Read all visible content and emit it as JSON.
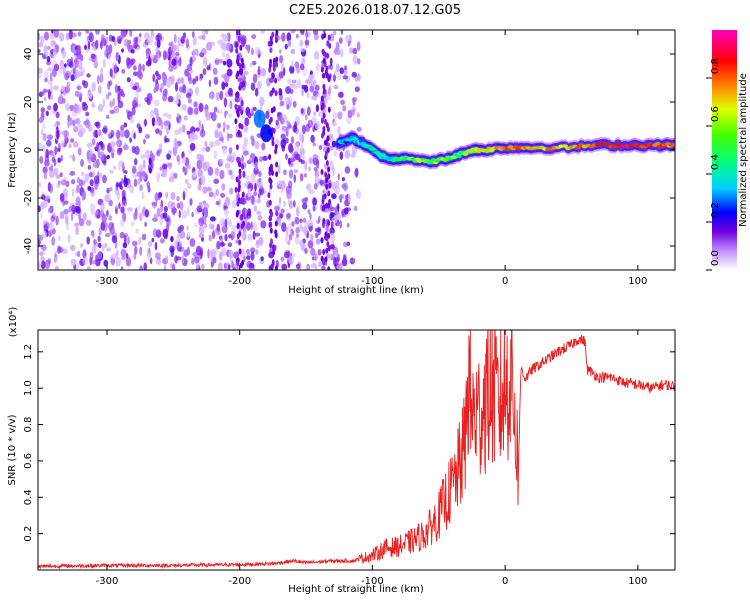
{
  "title": "C2E5.2026.018.07.12.G05",
  "chart_data": [
    {
      "type": "heatmap",
      "xlabel": "Height of straight line (km)",
      "ylabel": "Frequency (Hz)",
      "xlim": [
        -352,
        128
      ],
      "ylim": [
        -50,
        50
      ],
      "xticks": [
        -300,
        -200,
        -100,
        0,
        100
      ],
      "yticks": [
        -40,
        -20,
        0,
        20,
        40
      ],
      "colorbar": {
        "label": "Normalized spectral amplitude",
        "ticks": [
          0.0,
          0.2,
          0.4,
          0.6,
          0.8
        ],
        "range": [
          0,
          1
        ],
        "colors": [
          "#ffffff",
          "#b070ff",
          "#7000e0",
          "#0000ff",
          "#00e5ff",
          "#00ff40",
          "#e0ff00",
          "#ff8000",
          "#ff0000",
          "#ff0080",
          "#ff00c0"
        ]
      },
      "noise_region_x": [
        -352,
        -118
      ],
      "noise_gap_x": [
        -182,
        -172
      ],
      "features": [
        {
          "x": -185,
          "y": 13,
          "amplitude": 0.35
        },
        {
          "x": -180,
          "y": 7,
          "amplitude": 0.3
        }
      ],
      "signal_track": [
        {
          "x": -125,
          "y": 3,
          "amplitude": 0.35
        },
        {
          "x": -115,
          "y": 5,
          "amplitude": 0.35
        },
        {
          "x": -105,
          "y": 2,
          "amplitude": 0.4
        },
        {
          "x": -95,
          "y": -2,
          "amplitude": 0.45
        },
        {
          "x": -85,
          "y": -4,
          "amplitude": 0.45
        },
        {
          "x": -75,
          "y": -3,
          "amplitude": 0.5
        },
        {
          "x": -60,
          "y": -5,
          "amplitude": 0.55
        },
        {
          "x": -45,
          "y": -4,
          "amplitude": 0.55
        },
        {
          "x": -35,
          "y": -2,
          "amplitude": 0.5
        },
        {
          "x": -25,
          "y": 0,
          "amplitude": 0.6
        },
        {
          "x": -15,
          "y": 0,
          "amplitude": 0.6
        },
        {
          "x": 0,
          "y": 1,
          "amplitude": 0.75
        },
        {
          "x": 20,
          "y": 1,
          "amplitude": 0.7
        },
        {
          "x": 45,
          "y": 1,
          "amplitude": 0.65
        },
        {
          "x": 70,
          "y": 2,
          "amplitude": 0.75
        },
        {
          "x": 95,
          "y": 2,
          "amplitude": 0.85
        },
        {
          "x": 115,
          "y": 2,
          "amplitude": 0.75
        },
        {
          "x": 128,
          "y": 2,
          "amplitude": 0.7
        }
      ]
    },
    {
      "type": "line",
      "xlabel": "Height of straight line (km)",
      "ylabel": "SNR (10 * v/v)",
      "multiplier": "(x10⁴)",
      "xlim": [
        -352,
        128
      ],
      "ylim": [
        0,
        1.32
      ],
      "xticks": [
        -300,
        -200,
        -100,
        0,
        100
      ],
      "yticks": [
        0.2,
        0.4,
        0.6,
        0.8,
        1.0,
        1.2
      ],
      "series": [
        {
          "color": "#e82020",
          "x": [
            -352,
            -300,
            -250,
            -200,
            -175,
            -160,
            -150,
            -130,
            -115,
            -100,
            -90,
            -80,
            -70,
            -60,
            -50,
            -45,
            -40,
            -35,
            -30,
            -28,
            -25,
            -20,
            -15,
            -10,
            -5,
            0,
            5,
            10,
            12,
            15,
            20,
            30,
            40,
            50,
            55,
            60,
            62,
            65,
            70,
            80,
            90,
            100,
            110,
            120,
            128
          ],
          "values": [
            0.02,
            0.025,
            0.025,
            0.03,
            0.035,
            0.05,
            0.04,
            0.05,
            0.05,
            0.08,
            0.12,
            0.13,
            0.16,
            0.2,
            0.3,
            0.38,
            0.45,
            0.55,
            0.7,
            1.05,
            0.85,
            0.85,
            0.95,
            1.0,
            0.9,
            1.0,
            1.1,
            0.55,
            1.12,
            1.05,
            1.1,
            1.15,
            1.2,
            1.24,
            1.27,
            1.26,
            1.1,
            1.09,
            1.06,
            1.06,
            1.03,
            1.02,
            1.0,
            1.02,
            1.01
          ]
        }
      ]
    }
  ]
}
